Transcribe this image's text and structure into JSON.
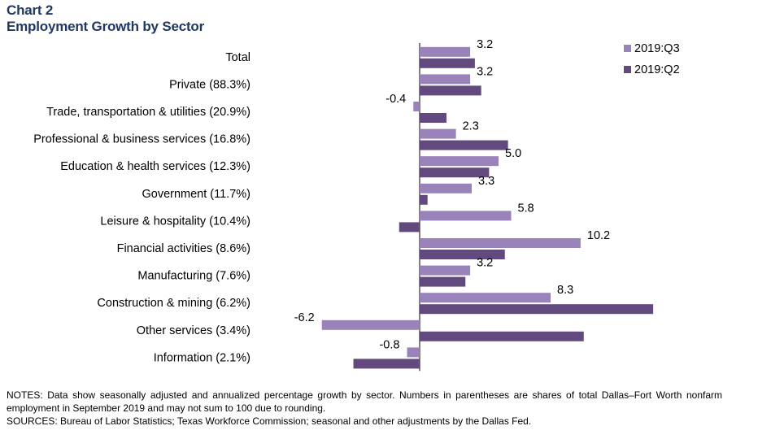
{
  "chart_label": "Chart 2",
  "chart_title": "Employment Growth by Sector",
  "chart_data": {
    "type": "bar",
    "orientation": "horizontal",
    "categories": [
      "Total",
      "Private (88.3%)",
      "Trade, transportation & utilities (20.9%)",
      "Professional & business services (16.8%)",
      "Education & health services (12.3%)",
      "Government (11.7%)",
      "Leisure & hospitality (10.4%)",
      "Financial activities (8.6%)",
      "Manufacturing (7.6%)",
      "Construction & mining (6.2%)",
      "Other services (3.4%)",
      "Information (2.1%)"
    ],
    "series": [
      {
        "name": "2019:Q3",
        "color": "#9a82bb",
        "values": [
          3.2,
          3.2,
          -0.4,
          2.3,
          5.0,
          3.3,
          5.8,
          10.2,
          3.2,
          8.3,
          -6.2,
          -0.8
        ],
        "labels": [
          "3.2",
          "3.2",
          "-0.4",
          "2.3",
          "5.0",
          "3.3",
          "5.8",
          "10.2",
          "3.2",
          "8.3",
          "-6.2",
          "-0.8"
        ]
      },
      {
        "name": "2019:Q2",
        "color": "#634a7e",
        "values": [
          3.5,
          3.9,
          1.7,
          5.6,
          4.4,
          0.5,
          -1.3,
          5.4,
          2.9,
          14.8,
          10.4,
          -4.2
        ]
      }
    ],
    "xlim": [
      -7,
      16
    ],
    "legend_position": "top-right",
    "grid": false
  },
  "notes": "NOTES: Data show seasonally adjusted and annualized percentage growth by sector. Numbers in parentheses are shares of total Dallas–Fort Worth nonfarm employment in September 2019 and may not sum to 100 due to rounding.",
  "sources": "SOURCES: Bureau of Labor Statistics; Texas Workforce Commission; seasonal and other adjustments by the Dallas Fed."
}
